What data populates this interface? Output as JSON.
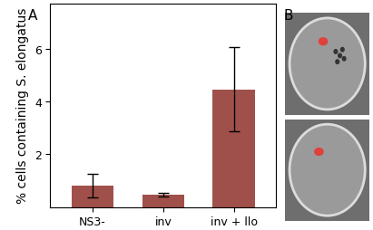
{
  "chart_data": {
    "type": "bar",
    "y_label": "% cells containing S. elongatus",
    "categories": [
      "NS3-",
      "inv",
      "inv + llo"
    ],
    "values": [
      0.8,
      0.45,
      4.45
    ],
    "errors": [
      0.45,
      0.07,
      1.6
    ],
    "color": "#a0504a",
    "ylim": [
      0,
      7.7
    ],
    "yticks": [
      2,
      4,
      6
    ]
  },
  "panel_labels": [
    "A",
    "B"
  ]
}
